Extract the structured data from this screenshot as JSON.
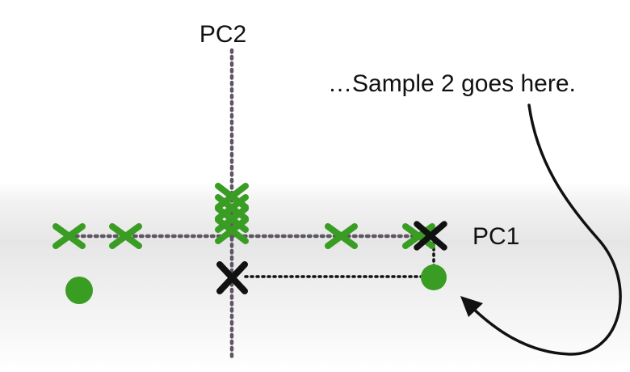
{
  "labels": {
    "pc2": "PC2",
    "pc1": "PC1",
    "annotation": "…Sample 2 goes here."
  },
  "colors": {
    "green": "#3a9d23",
    "black": "#111111",
    "axis": "#5e5762"
  },
  "icons": {
    "green_mark": "x-mark-icon",
    "black_mark": "x-mark-icon",
    "sample_point": "dot-icon",
    "curve_arrow": "curved-arrow-icon"
  }
}
